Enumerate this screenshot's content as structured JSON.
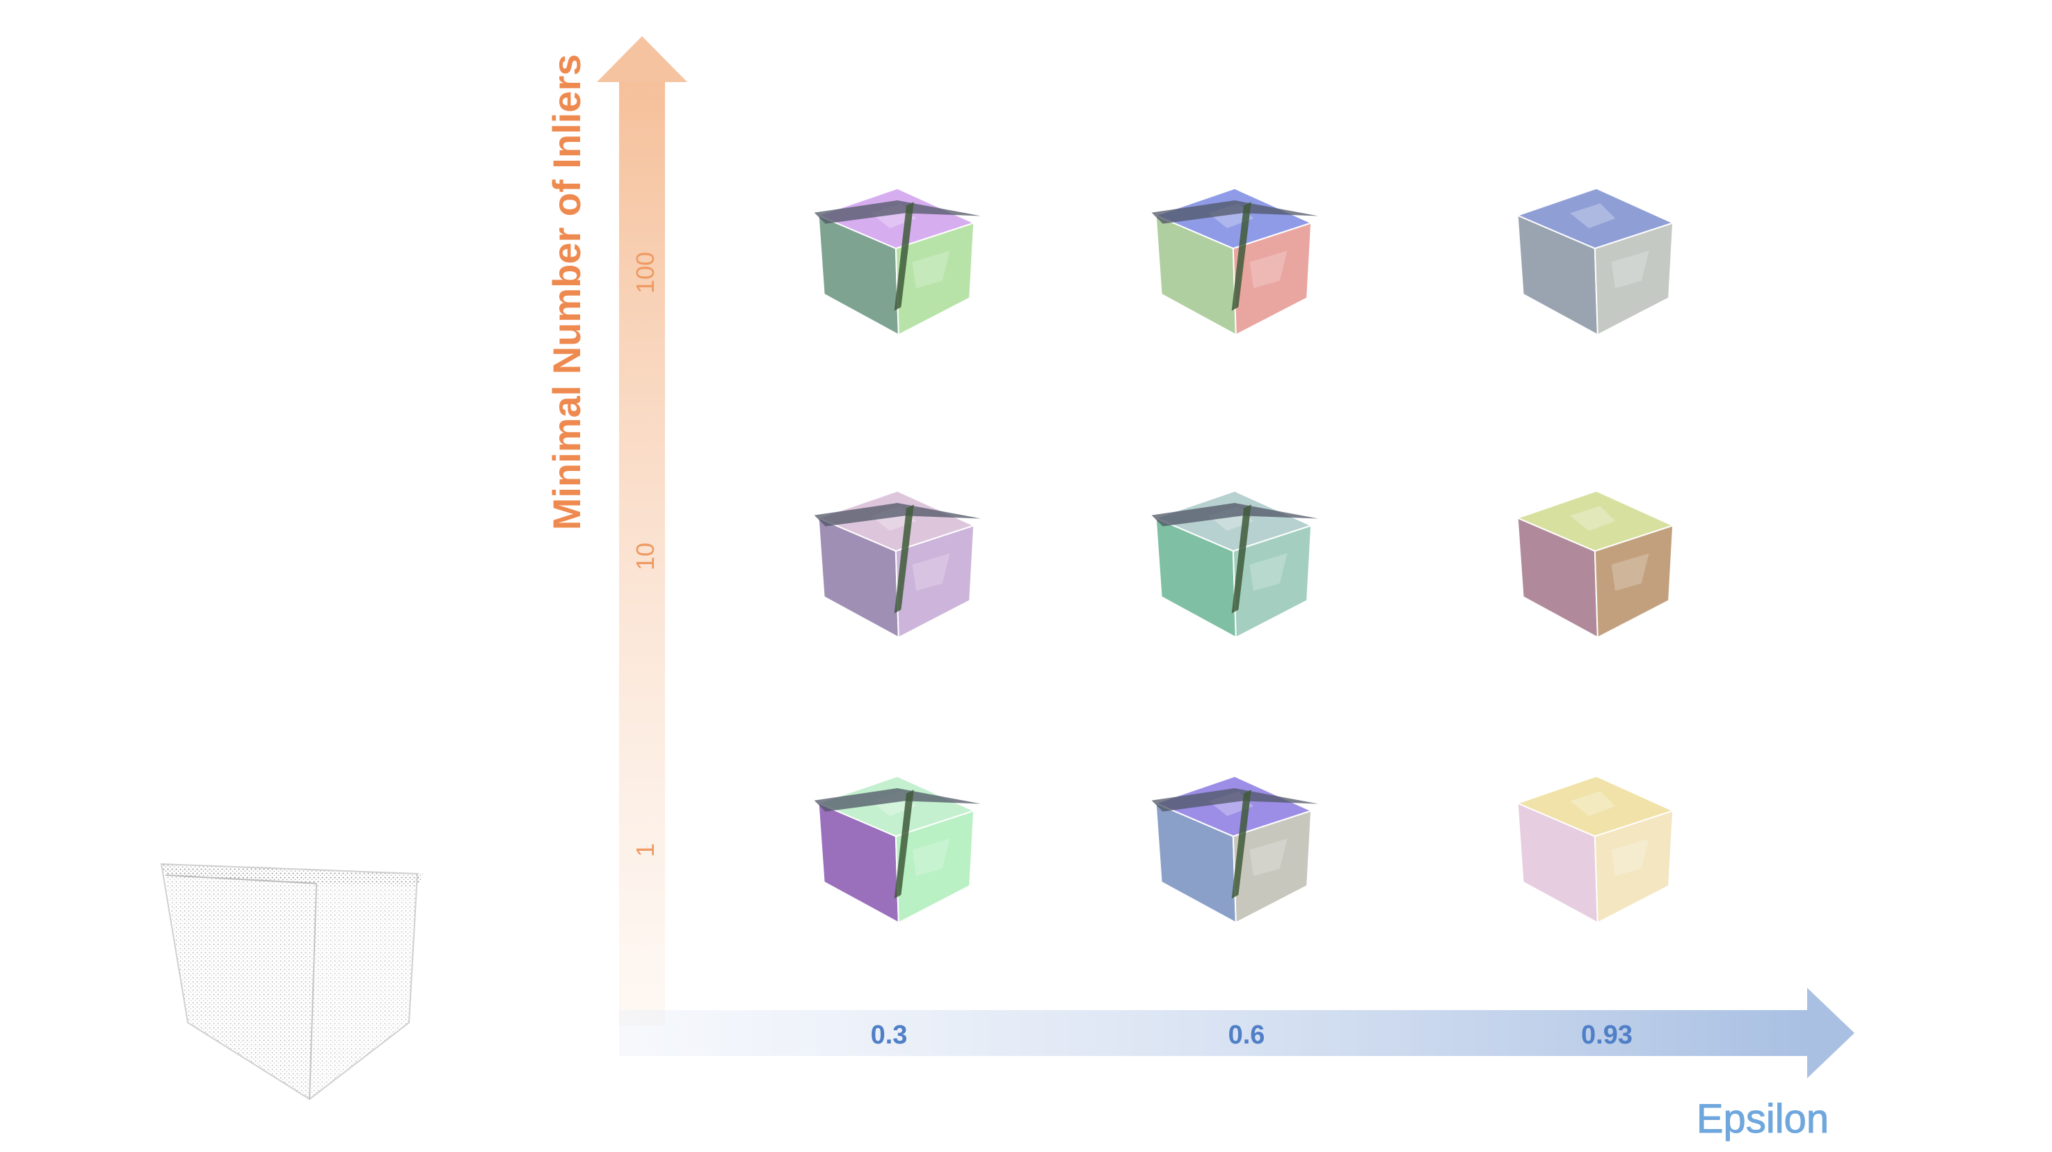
{
  "y_axis": {
    "title": "Minimal Number of Inliers",
    "ticks": [
      "100",
      "10",
      "1"
    ],
    "color": "#ee8a4f"
  },
  "x_axis": {
    "title": "Epsilon",
    "ticks": [
      "0.3",
      "0.6",
      "0.93"
    ],
    "color": "#4f7fc6",
    "title_color": "#6fa7dd"
  },
  "input_preview": {
    "icon": "point-cloud-cube-icon"
  },
  "grid": [
    {
      "inliers": "100",
      "epsilon": "0.3",
      "palette": [
        "#d6aef0",
        "#7fa391",
        "#b7e3a8"
      ]
    },
    {
      "inliers": "100",
      "epsilon": "0.6",
      "palette": [
        "#8f9be6",
        "#b0cfa0",
        "#e9a5a0"
      ]
    },
    {
      "inliers": "100",
      "epsilon": "0.93",
      "palette": [
        "#8f9fd6",
        "#9aa4b0",
        "#c5c9c4"
      ]
    },
    {
      "inliers": "10",
      "epsilon": "0.3",
      "palette": [
        "#ddc6dc",
        "#a08fb4",
        "#cdb4da"
      ]
    },
    {
      "inliers": "10",
      "epsilon": "0.6",
      "palette": [
        "#b7d0d0",
        "#7fbfa3",
        "#a4cfc0"
      ]
    },
    {
      "inliers": "10",
      "epsilon": "0.93",
      "palette": [
        "#d8e0a0",
        "#b08a9a",
        "#c2a07d"
      ]
    },
    {
      "inliers": "1",
      "epsilon": "0.3",
      "palette": [
        "#c4f0cf",
        "#9a6fbc",
        "#b9f0c4"
      ]
    },
    {
      "inliers": "1",
      "epsilon": "0.6",
      "palette": [
        "#9c8ee6",
        "#8aa0c8",
        "#c8c7bd"
      ]
    },
    {
      "inliers": "1",
      "epsilon": "0.93",
      "palette": [
        "#f0e2a8",
        "#e6cde0",
        "#f3e6c0"
      ]
    }
  ]
}
